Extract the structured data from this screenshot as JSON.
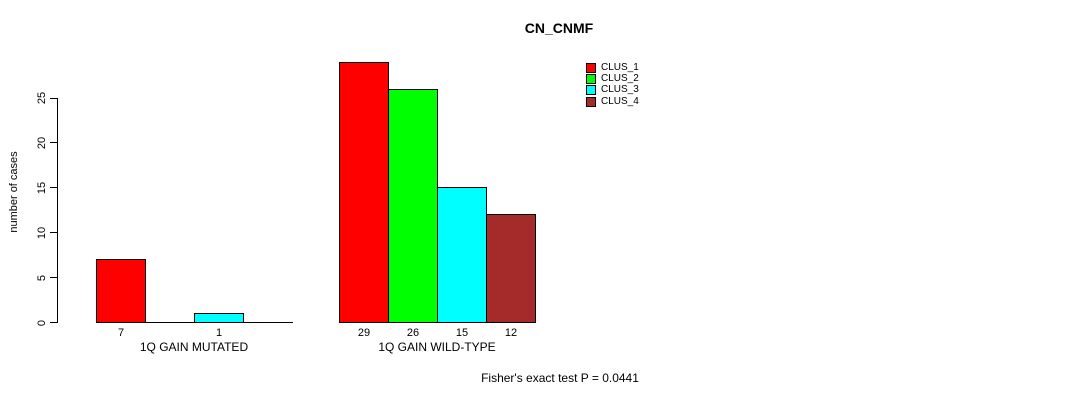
{
  "title": "CN_CNMF",
  "ylabel": "number of cases",
  "annotation": "Fisher's exact test P = 0.0441",
  "chart_data": {
    "type": "bar",
    "title": "CN_CNMF",
    "xlabel": "",
    "ylabel": "number of cases",
    "yticks": [
      0,
      5,
      10,
      15,
      20,
      25
    ],
    "ylim": [
      0,
      29
    ],
    "grid": false,
    "legend_position": "top-right",
    "legend": [
      {
        "label": "CLUS_1",
        "color": "#ff0000"
      },
      {
        "label": "CLUS_2",
        "color": "#00ff00"
      },
      {
        "label": "CLUS_3",
        "color": "#00ffff"
      },
      {
        "label": "CLUS_4",
        "color": "#a52a2a"
      }
    ],
    "groups": [
      {
        "label": "1Q GAIN MUTATED",
        "slots": 4,
        "bars": [
          {
            "cluster": "CLUS_1",
            "slot": 0,
            "value": 7,
            "label": "7",
            "color": "#ff0000"
          },
          {
            "cluster": "CLUS_3",
            "slot": 2,
            "value": 1,
            "label": "1",
            "color": "#00ffff"
          }
        ]
      },
      {
        "label": "1Q GAIN WILD-TYPE",
        "slots": 4,
        "bars": [
          {
            "cluster": "CLUS_1",
            "slot": 0,
            "value": 29,
            "label": "29",
            "color": "#ff0000"
          },
          {
            "cluster": "CLUS_2",
            "slot": 1,
            "value": 26,
            "label": "26",
            "color": "#00ff00"
          },
          {
            "cluster": "CLUS_3",
            "slot": 2,
            "value": 15,
            "label": "15",
            "color": "#00ffff"
          },
          {
            "cluster": "CLUS_4",
            "slot": 3,
            "value": 12,
            "label": "12",
            "color": "#a52a2a"
          }
        ]
      }
    ],
    "annotation": "Fisher's exact test P = 0.0441"
  }
}
